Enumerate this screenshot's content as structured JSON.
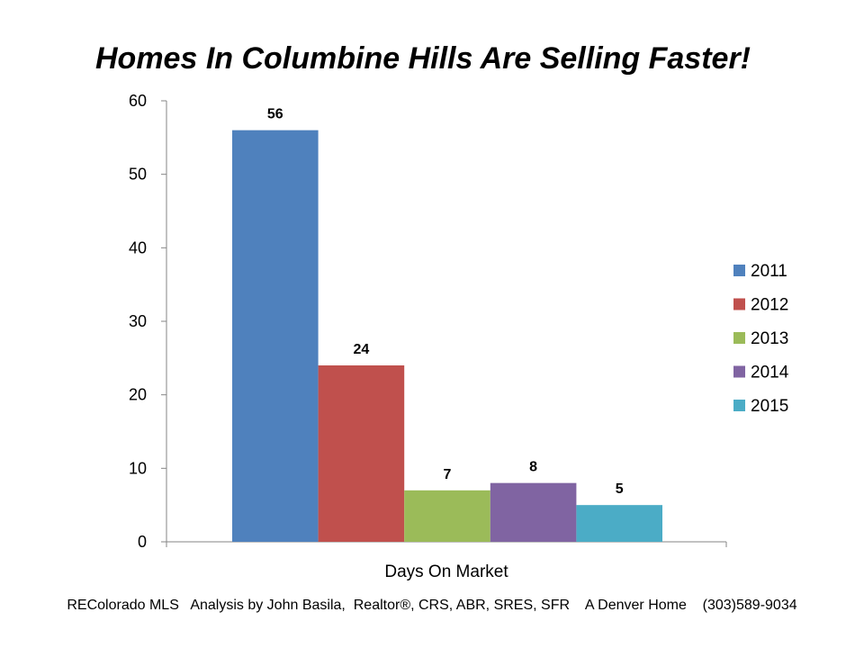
{
  "title": "Homes In Columbine Hills Are Selling Faster!",
  "footer": "REColorado MLS   Analysis by John Basila,  Realtor®, CRS, ABR, SRES, SFR    A Denver Home    (303)589-9034",
  "chart_data": {
    "type": "bar",
    "title": "Homes In Columbine Hills Are Selling Faster!",
    "categories": [
      "Days On Market"
    ],
    "xlabel": "Days On Market",
    "ylabel": "",
    "ylim": [
      0,
      60
    ],
    "yticks": [
      0,
      10,
      20,
      30,
      40,
      50,
      60
    ],
    "grid": false,
    "legend_position": "right",
    "series": [
      {
        "name": "2011",
        "values": [
          56
        ],
        "color": "#4f81bd"
      },
      {
        "name": "2012",
        "values": [
          24
        ],
        "color": "#c0504d"
      },
      {
        "name": "2013",
        "values": [
          7
        ],
        "color": "#9bbb59"
      },
      {
        "name": "2014",
        "values": [
          8
        ],
        "color": "#8064a2"
      },
      {
        "name": "2015",
        "values": [
          5
        ],
        "color": "#4bacc6"
      }
    ]
  }
}
